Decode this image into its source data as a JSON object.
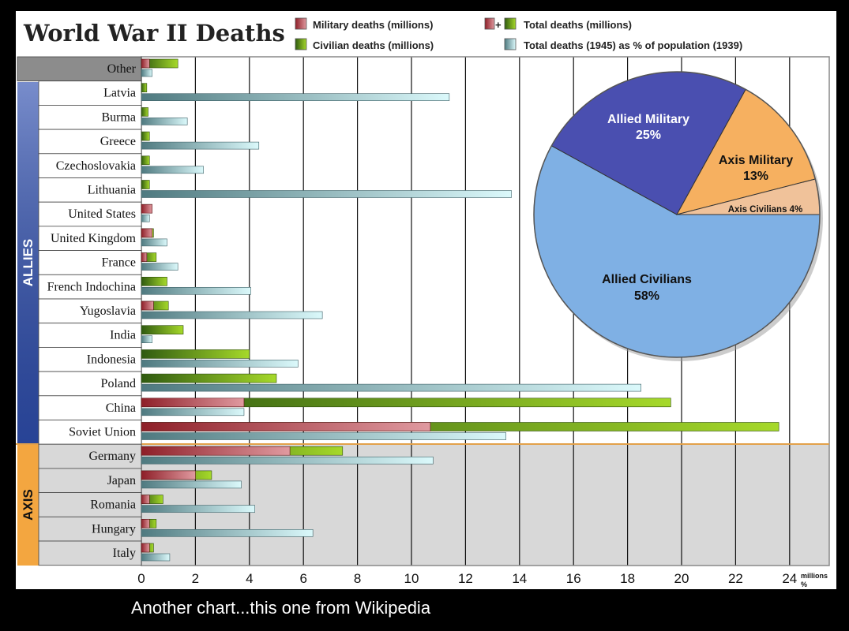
{
  "caption": "Another chart...this one from Wikipedia",
  "chart_data": [
    {
      "type": "bar",
      "title": "World War II Deaths",
      "x_unit_label": "millions",
      "x_unit_label_2": "%",
      "xlim": [
        0,
        25
      ],
      "x_ticks": [
        "0",
        "2",
        "4",
        "6",
        "8",
        "10",
        "12",
        "14",
        "16",
        "18",
        "20",
        "22",
        "24"
      ],
      "legend": {
        "military": "Military deaths (millions)",
        "civilian": "Civilian deaths (millions)",
        "total_plus": "+",
        "total": "Total deaths (millions)",
        "percent": "Total deaths (1945) as % of population (1939)"
      },
      "colors": {
        "military": "#b8464c",
        "civilian": "#6fae1a",
        "percent": "#bfeef2",
        "allies_band": "#2f4fb0",
        "axis_band": "#f3a640"
      },
      "groups": {
        "allies": "ALLIES",
        "axis": "AXIS"
      },
      "categories": [
        "Other",
        "Latvia",
        "Burma",
        "Greece",
        "Czechoslovakia",
        "Lithuania",
        "United States",
        "United Kingdom",
        "France",
        "French Indochina",
        "Yugoslavia",
        "India",
        "Indonesia",
        "Poland",
        "China",
        "Soviet Union",
        "Germany",
        "Japan",
        "Romania",
        "Hungary",
        "Italy"
      ],
      "category_groups": [
        "other",
        "allies",
        "allies",
        "allies",
        "allies",
        "allies",
        "allies",
        "allies",
        "allies",
        "allies",
        "allies",
        "allies",
        "allies",
        "allies",
        "allies",
        "allies",
        "axis",
        "axis",
        "axis",
        "axis",
        "axis"
      ],
      "series": [
        {
          "name": "Military deaths (millions)",
          "values": [
            0.3,
            0,
            0,
            0,
            0,
            0,
            0.4,
            0.4,
            0.2,
            0,
            0.45,
            0,
            0,
            0,
            3.8,
            10.7,
            5.5,
            2.0,
            0.3,
            0.3,
            0.3
          ]
        },
        {
          "name": "Total deaths (millions)",
          "values": [
            1.35,
            0.2,
            0.25,
            0.3,
            0.3,
            0.3,
            0.4,
            0.45,
            0.55,
            0.95,
            1.0,
            1.55,
            4.0,
            5.0,
            19.6,
            23.6,
            7.45,
            2.6,
            0.8,
            0.55,
            0.45
          ]
        },
        {
          "name": "Total deaths (1945) as % of population (1939)",
          "values": [
            0.4,
            11.4,
            1.7,
            4.35,
            2.3,
            13.7,
            0.3,
            0.95,
            1.35,
            4.05,
            6.7,
            0.4,
            5.8,
            18.5,
            3.8,
            13.5,
            10.8,
            3.7,
            4.2,
            6.35,
            1.05
          ]
        }
      ]
    },
    {
      "type": "pie",
      "slices": [
        {
          "label": "Allied Military",
          "pct_label": "25%",
          "value": 25,
          "color": "#4a4fb0"
        },
        {
          "label": "Axis Military",
          "pct_label": "13%",
          "value": 13,
          "color": "#f6b060"
        },
        {
          "label": "Axis Civilians 4%",
          "pct_label": "",
          "value": 4,
          "color": "#f0c29a"
        },
        {
          "label": "Allied Civilians",
          "pct_label": "58%",
          "value": 58,
          "color": "#7fb0e4"
        }
      ]
    }
  ]
}
